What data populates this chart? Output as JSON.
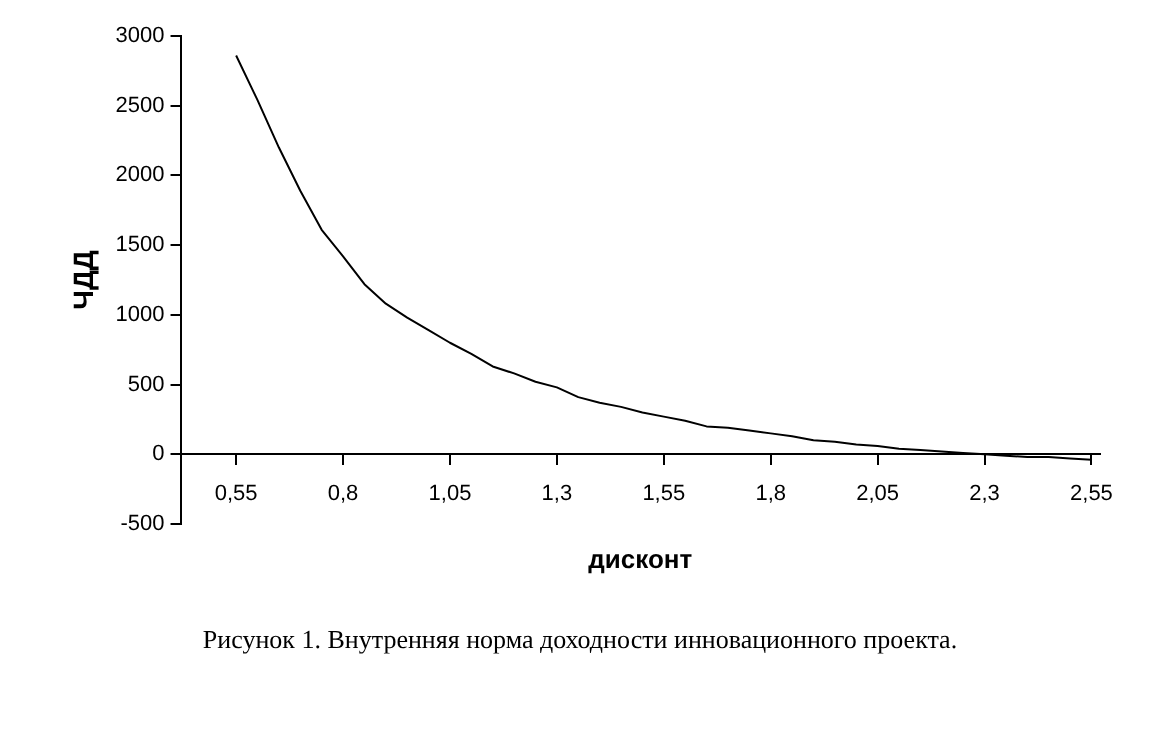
{
  "chart_data": {
    "type": "line",
    "xlabel": "дисконт",
    "ylabel": "ЧДД",
    "annotations": [
      "Рисунок 1. Внутренняя норма доходности инновационного проекта."
    ],
    "x": [
      0.55,
      0.6,
      0.65,
      0.7,
      0.75,
      0.8,
      0.85,
      0.9,
      0.95,
      1.0,
      1.05,
      1.1,
      1.15,
      1.2,
      1.25,
      1.3,
      1.35,
      1.4,
      1.45,
      1.5,
      1.55,
      1.6,
      1.65,
      1.7,
      1.75,
      1.8,
      1.85,
      1.9,
      1.95,
      2.0,
      2.05,
      2.1,
      2.15,
      2.2,
      2.25,
      2.3,
      2.35,
      2.4,
      2.45,
      2.5,
      2.55
    ],
    "series": [
      {
        "color": "#000000",
        "values": [
          2860,
          2540,
          2200,
          1890,
          1610,
          1420,
          1220,
          1080,
          980,
          890,
          800,
          720,
          630,
          580,
          520,
          480,
          410,
          370,
          340,
          300,
          270,
          240,
          200,
          190,
          170,
          150,
          130,
          100,
          90,
          70,
          60,
          40,
          30,
          20,
          10,
          0,
          -10,
          -20,
          -20,
          -30,
          -40
        ]
      }
    ],
    "xlim": [
      0.42,
      2.57
    ],
    "xticks": [
      {
        "value": 0.55,
        "label": "0,55"
      },
      {
        "value": 0.8,
        "label": "0,8"
      },
      {
        "value": 1.05,
        "label": "1,05"
      },
      {
        "value": 1.3,
        "label": "1,3"
      },
      {
        "value": 1.55,
        "label": "1,55"
      },
      {
        "value": 1.8,
        "label": "1,8"
      },
      {
        "value": 2.05,
        "label": "2,05"
      },
      {
        "value": 2.3,
        "label": "2,3"
      },
      {
        "value": 2.55,
        "label": "2,55"
      }
    ],
    "ylim": [
      -500,
      3000
    ],
    "yticks": [
      -500,
      0,
      500,
      1000,
      1500,
      2000,
      2500,
      3000
    ],
    "grid": false,
    "legend": false,
    "marker": "none",
    "line_style": "solid"
  }
}
